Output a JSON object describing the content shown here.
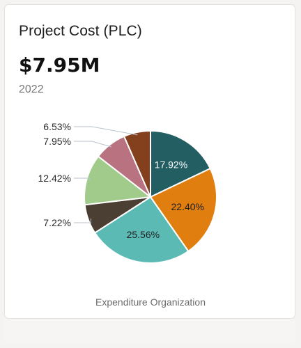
{
  "card": {
    "title": "Project Cost (PLC)",
    "amount": "$7.95M",
    "year": "2022"
  },
  "chart_data": {
    "type": "pie",
    "xlabel": "Expenditure Organization",
    "slices": [
      {
        "label": "17.92%",
        "value": 17.92,
        "color": "#235e63",
        "label_position": "inside"
      },
      {
        "label": "22.40%",
        "value": 22.4,
        "color": "#e07f10",
        "label_position": "inside"
      },
      {
        "label": "25.56%",
        "value": 25.56,
        "color": "#5cbab5",
        "label_position": "inside"
      },
      {
        "label": "7.22%",
        "value": 7.22,
        "color": "#4b3e33",
        "label_position": "outside"
      },
      {
        "label": "12.42%",
        "value": 12.42,
        "color": "#a1cb8b",
        "label_position": "outside"
      },
      {
        "label": "7.95%",
        "value": 7.95,
        "color": "#b87280",
        "label_position": "outside"
      },
      {
        "label": "6.53%",
        "value": 6.53,
        "color": "#843f1c",
        "label_position": "outside"
      }
    ]
  }
}
